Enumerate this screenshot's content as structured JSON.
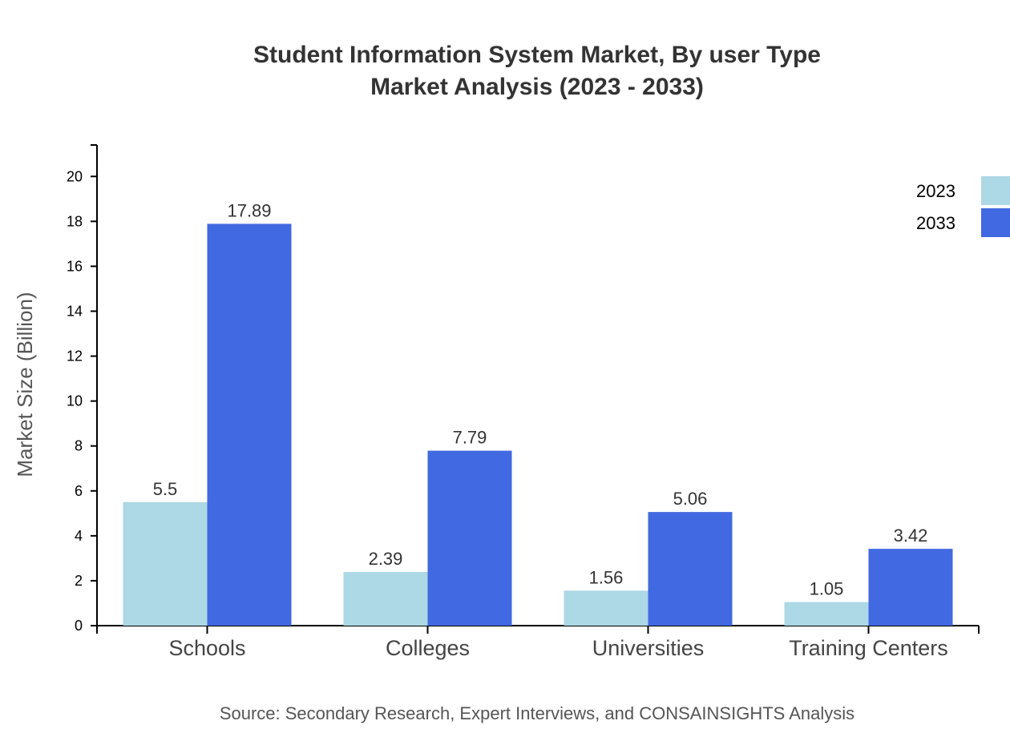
{
  "chart_data": {
    "type": "bar",
    "title": "Student Information System Market, By user Type",
    "subtitle": "Market Analysis (2023 - 2033)",
    "xlabel": "",
    "ylabel": "Market Size (Billion)",
    "categories": [
      "Schools",
      "Colleges",
      "Universities",
      "Training Centers"
    ],
    "series": [
      {
        "name": "2023",
        "values": [
          5.5,
          2.39,
          1.56,
          1.05
        ],
        "color": "#add8e6"
      },
      {
        "name": "2033",
        "values": [
          17.89,
          7.79,
          5.06,
          3.42
        ],
        "color": "#4169e1"
      }
    ],
    "ylim": [
      0,
      21.4
    ],
    "yticks": [
      0,
      2,
      4,
      6,
      8,
      10,
      12,
      14,
      16,
      18,
      20
    ],
    "grid": false,
    "legend_position": "top-right",
    "source": "Source: Secondary Research, Expert Interviews, and CONSAINSIGHTS Analysis"
  }
}
